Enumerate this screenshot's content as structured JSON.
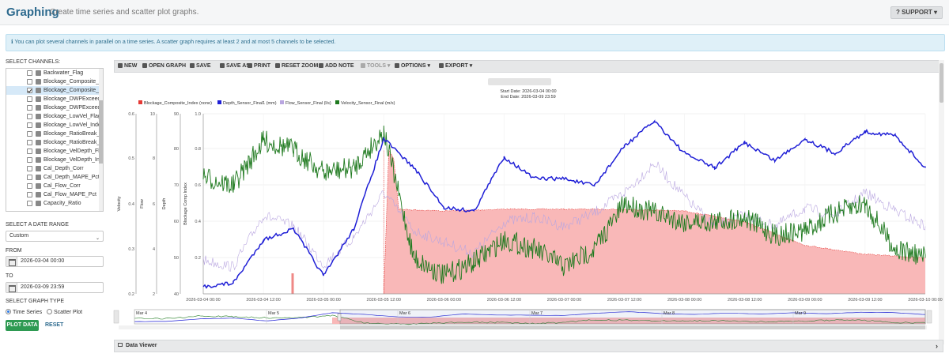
{
  "header": {
    "title": "Graphing",
    "subtitle": "Create time series and scatter plot graphs.",
    "support_label": "SUPPORT"
  },
  "info": {
    "text": "You can plot several channels in parallel on a time series. A scatter graph requires at least 2 and at most 5 channels to be selected."
  },
  "sidebar": {
    "channels_label": "SELECT CHANNELS:",
    "channels": [
      {
        "label": "Backwater_Flag",
        "checked": false,
        "selected": false
      },
      {
        "label": "Blockage_Composite_Fla",
        "checked": false,
        "selected": false
      },
      {
        "label": "Blockage_Composite_Inc",
        "checked": true,
        "selected": true
      },
      {
        "label": "Blockage_DWPExceed_Fl",
        "checked": false,
        "selected": false
      },
      {
        "label": "Blockage_DWPExceed_In",
        "checked": false,
        "selected": false
      },
      {
        "label": "Blockage_LowVel_Flag",
        "checked": false,
        "selected": false
      },
      {
        "label": "Blockage_LowVel_Index",
        "checked": false,
        "selected": false
      },
      {
        "label": "Blockage_RatioBreak_Fla",
        "checked": false,
        "selected": false
      },
      {
        "label": "Blockage_RatioBreak_Inc",
        "checked": false,
        "selected": false
      },
      {
        "label": "Blockage_VelDepth_Flag",
        "checked": false,
        "selected": false
      },
      {
        "label": "Blockage_VelDepth_Inde",
        "checked": false,
        "selected": false
      },
      {
        "label": "Cal_Depth_Corr",
        "checked": false,
        "selected": false
      },
      {
        "label": "Cal_Depth_MAPE_Pct",
        "checked": false,
        "selected": false
      },
      {
        "label": "Cal_Flow_Corr",
        "checked": false,
        "selected": false
      },
      {
        "label": "Cal_Flow_MAPE_Pct",
        "checked": false,
        "selected": false
      },
      {
        "label": "Capacity_Ratio",
        "checked": false,
        "selected": false
      }
    ],
    "date_range_label": "SELECT A DATE RANGE",
    "date_range_value": "Custom",
    "from_label": "FROM",
    "from_value": "2026-03-04 00:00",
    "to_label": "TO",
    "to_value": "2026-03-09 23:59",
    "graph_type_label": "SELECT GRAPH TYPE",
    "graph_types": [
      "Time Series",
      "Scatter Plot"
    ],
    "graph_type_selected": "Time Series",
    "plot_label": "PLOT DATA",
    "reset_label": "RESET"
  },
  "toolbar": {
    "items": [
      {
        "label": "NEW",
        "icon": "file-icon",
        "enabled": true
      },
      {
        "label": "OPEN GRAPH",
        "icon": "folder-icon",
        "enabled": true
      },
      {
        "label": "SAVE",
        "icon": "save-icon",
        "enabled": true
      },
      {
        "label": "SAVE AS",
        "icon": "save-as-icon",
        "enabled": true
      },
      {
        "label": "PRINT",
        "icon": "print-icon",
        "enabled": true
      },
      {
        "label": "RESET ZOOM",
        "icon": "zoom-icon",
        "enabled": true
      },
      {
        "label": "ADD NOTE",
        "icon": "pencil-icon",
        "enabled": true
      },
      {
        "label": "TOOLS ▾",
        "icon": "wrench-icon",
        "enabled": false
      },
      {
        "label": "OPTIONS ▾",
        "icon": "gear-icon",
        "enabled": true
      },
      {
        "label": "EXPORT ▾",
        "icon": "download-icon",
        "enabled": true
      }
    ]
  },
  "data_viewer": {
    "label": "Data Viewer"
  },
  "chart_data": {
    "type": "line",
    "start_date": "Start Date: 2026-03-04 00:00",
    "end_date": "End Date: 2026-03-09 23:59",
    "legend_position": "top-left",
    "grid": true,
    "colors": {
      "blockage": "#e53935",
      "depth": "#1f1fd6",
      "flow": "#b9a6e0",
      "velocity": "#1f7a1f",
      "blockage_fill": "#f9b8b8"
    },
    "y_axes": [
      {
        "label": "Velocity",
        "ticks": [
          "0.6",
          "0.5",
          "0.4",
          "0.3",
          "0.2"
        ],
        "range": [
          0.2,
          0.6
        ]
      },
      {
        "label": "Flow",
        "ticks": [
          "10",
          "8",
          "6",
          "4",
          "2"
        ],
        "range": [
          2,
          10
        ]
      },
      {
        "label": "Depth",
        "ticks": [
          "90",
          "80",
          "70",
          "60",
          "50",
          "40"
        ],
        "range": [
          40,
          90
        ]
      },
      {
        "label": "Blockage Comp Index",
        "ticks": [
          "1.0",
          "0.8",
          "0.6",
          "0.4",
          "0.2"
        ],
        "range": [
          0,
          1.0
        ]
      }
    ],
    "x_ticks": [
      "2026-03-04 00:00",
      "2026-03-04 12:00",
      "2026-03-05 00:00",
      "2026-03-05 12:00",
      "2026-03-06 00:00",
      "2026-03-06 12:00",
      "2026-03-07 00:00",
      "2026-03-07 12:00",
      "2026-03-08 00:00",
      "2026-03-08 12:00",
      "2026-03-09 00:00",
      "2026-03-09 12:00",
      "2026-03-10 00:00"
    ],
    "navigator_labels": [
      "Mar 4",
      "Mar 5",
      "Mar 6",
      "Mar 7",
      "Mar 8",
      "Mar 9"
    ],
    "series": [
      {
        "name": "Blockage_Composite_Index (none)",
        "x": [
          "2026-03-04 00:00",
          "2026-03-04 12:00",
          "2026-03-05 00:00",
          "2026-03-05 12:00",
          "2026-03-05 13:00",
          "2026-03-05 14:00",
          "2026-03-05 15:00",
          "2026-03-06 00:00",
          "2026-03-06 12:00",
          "2026-03-07 00:00",
          "2026-03-07 12:00",
          "2026-03-08 00:00",
          "2026-03-08 12:00",
          "2026-03-09 00:00",
          "2026-03-09 12:00",
          "2026-03-10 00:00"
        ],
        "y": [
          0.0,
          0.0,
          0.0,
          0.0,
          0.8,
          0.75,
          0.47,
          0.46,
          0.47,
          0.47,
          0.47,
          0.46,
          0.4,
          0.27,
          0.22,
          0.2
        ]
      },
      {
        "name": "Depth_Sensor_Final1 (mm)",
        "x": [
          "2026-03-04 00:00",
          "2026-03-04 06:00",
          "2026-03-04 12:00",
          "2026-03-04 18:00",
          "2026-03-05 00:00",
          "2026-03-05 06:00",
          "2026-03-05 12:00",
          "2026-03-05 18:00",
          "2026-03-06 00:00",
          "2026-03-06 06:00",
          "2026-03-06 12:00",
          "2026-03-06 18:00",
          "2026-03-07 00:00",
          "2026-03-07 06:00",
          "2026-03-07 12:00",
          "2026-03-07 18:00",
          "2026-03-08 00:00",
          "2026-03-08 06:00",
          "2026-03-08 12:00",
          "2026-03-08 18:00",
          "2026-03-09 00:00",
          "2026-03-09 06:00",
          "2026-03-09 12:00",
          "2026-03-09 18:00",
          "2026-03-10 00:00"
        ],
        "y": [
          42,
          43,
          55,
          58,
          45,
          58,
          83,
          75,
          64,
          63,
          78,
          72,
          72,
          70,
          81,
          88,
          79,
          75,
          82,
          77,
          83,
          79,
          85,
          84,
          75
        ]
      },
      {
        "name": "Flow_Sensor_Final (l/s)",
        "x": [
          "2026-03-04 00:00",
          "2026-03-04 06:00",
          "2026-03-04 12:00",
          "2026-03-04 18:00",
          "2026-03-05 00:00",
          "2026-03-05 06:00",
          "2026-03-05 12:00",
          "2026-03-05 18:00",
          "2026-03-06 00:00",
          "2026-03-06 06:00",
          "2026-03-06 12:00",
          "2026-03-06 18:00",
          "2026-03-07 00:00",
          "2026-03-07 06:00",
          "2026-03-07 12:00",
          "2026-03-07 18:00",
          "2026-03-08 00:00",
          "2026-03-08 06:00",
          "2026-03-08 12:00",
          "2026-03-08 18:00",
          "2026-03-09 00:00",
          "2026-03-09 06:00",
          "2026-03-09 12:00",
          "2026-03-09 18:00",
          "2026-03-10 00:00"
        ],
        "y": [
          3.5,
          3.2,
          5.5,
          5.0,
          3.3,
          4.5,
          6.5,
          4.8,
          4.3,
          3.8,
          5.2,
          5.4,
          5.0,
          5.6,
          6.5,
          7.8,
          6.3,
          5.0,
          5.5,
          5.0,
          5.8,
          5.5,
          6.5,
          5.7,
          5.0
        ]
      },
      {
        "name": "Velocity_Sensor_Final (m/s)",
        "x": [
          "2026-03-04 00:00",
          "2026-03-04 06:00",
          "2026-03-04 12:00",
          "2026-03-04 18:00",
          "2026-03-05 00:00",
          "2026-03-05 06:00",
          "2026-03-05 12:00",
          "2026-03-05 18:00",
          "2026-03-06 00:00",
          "2026-03-06 06:00",
          "2026-03-06 12:00",
          "2026-03-06 18:00",
          "2026-03-07 00:00",
          "2026-03-07 06:00",
          "2026-03-07 12:00",
          "2026-03-07 18:00",
          "2026-03-08 00:00",
          "2026-03-08 06:00",
          "2026-03-08 12:00",
          "2026-03-08 18:00",
          "2026-03-09 00:00",
          "2026-03-09 06:00",
          "2026-03-09 12:00",
          "2026-03-09 18:00",
          "2026-03-10 00:00"
        ],
        "y": [
          0.46,
          0.44,
          0.54,
          0.52,
          0.47,
          0.48,
          0.56,
          0.28,
          0.24,
          0.27,
          0.32,
          0.3,
          0.26,
          0.3,
          0.4,
          0.38,
          0.36,
          0.36,
          0.37,
          0.33,
          0.34,
          0.38,
          0.4,
          0.3,
          0.28
        ]
      }
    ]
  }
}
